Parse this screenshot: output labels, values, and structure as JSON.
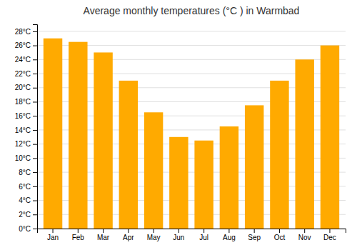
{
  "chart_data": {
    "type": "bar",
    "title": "Average monthly temperatures (°C ) in Warmbad",
    "categories": [
      "Jan",
      "Feb",
      "Mar",
      "Apr",
      "May",
      "Jun",
      "Jul",
      "Aug",
      "Sep",
      "Oct",
      "Nov",
      "Dec"
    ],
    "values": [
      27.0,
      26.5,
      25.0,
      21.0,
      16.5,
      13.0,
      12.5,
      14.5,
      17.5,
      21.0,
      24.0,
      26.0
    ],
    "color": "#FFAA00",
    "ylim": [
      0,
      29
    ],
    "yticks": [
      {
        "value": 0,
        "label": "0°C"
      },
      {
        "value": 2,
        "label": "2°C"
      },
      {
        "value": 4,
        "label": "4°C"
      },
      {
        "value": 6,
        "label": "6°C"
      },
      {
        "value": 8,
        "label": "8°C"
      },
      {
        "value": 10,
        "label": "10°C"
      },
      {
        "value": 12,
        "label": "12°C"
      },
      {
        "value": 14,
        "label": "14°C"
      },
      {
        "value": 16,
        "label": "16°C"
      },
      {
        "value": 18,
        "label": "18°C"
      },
      {
        "value": 20,
        "label": "20°C"
      },
      {
        "value": 22,
        "label": "22°C"
      },
      {
        "value": 24,
        "label": "24°C"
      },
      {
        "value": 26,
        "label": "26°C"
      },
      {
        "value": 28,
        "label": "28°C"
      }
    ],
    "grid": true
  }
}
